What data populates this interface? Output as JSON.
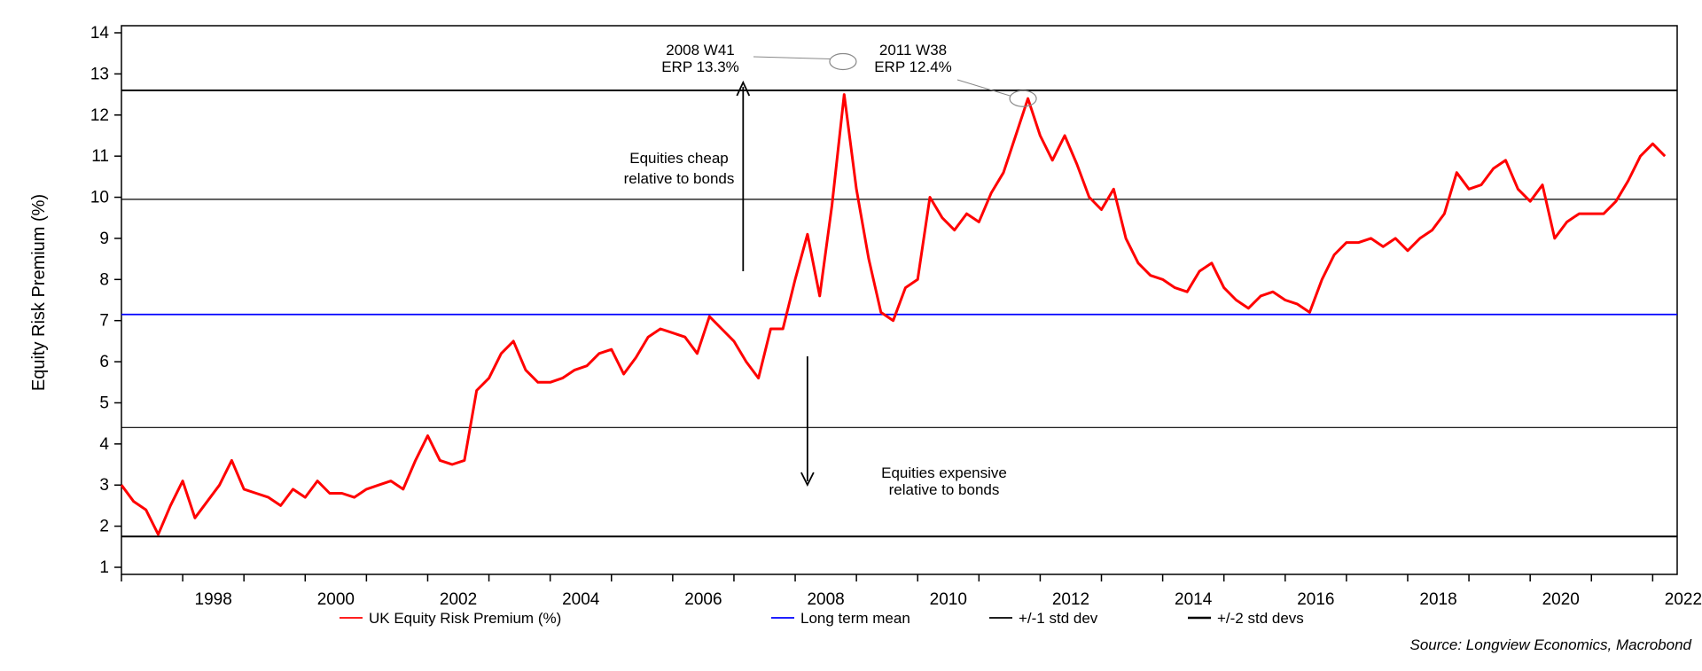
{
  "chart_data": {
    "type": "line",
    "title": "",
    "ylabel": "Equity Risk Premium (%)",
    "xlabel": "",
    "xlim": [
      1997.0,
      2022.4
    ],
    "ylim": [
      1,
      14
    ],
    "y_ticks": [
      1,
      2,
      3,
      4,
      5,
      6,
      7,
      8,
      9,
      10,
      11,
      12,
      13,
      14
    ],
    "x_ticks": [
      1998,
      2000,
      2002,
      2004,
      2006,
      2008,
      2010,
      2012,
      2014,
      2016,
      2018,
      2020,
      2022
    ],
    "grid": false,
    "legend_position": "bottom",
    "series": [
      {
        "name": "UK Equity Risk Premium (%)",
        "color": "#ff0000",
        "x": [
          1997.0,
          1997.2,
          1997.4,
          1997.6,
          1997.8,
          1998.0,
          1998.2,
          1998.4,
          1998.6,
          1998.8,
          1999.0,
          1999.2,
          1999.4,
          1999.6,
          1999.8,
          2000.0,
          2000.2,
          2000.4,
          2000.6,
          2000.8,
          2001.0,
          2001.2,
          2001.4,
          2001.6,
          2001.8,
          2002.0,
          2002.2,
          2002.4,
          2002.6,
          2002.8,
          2003.0,
          2003.2,
          2003.4,
          2003.6,
          2003.8,
          2004.0,
          2004.2,
          2004.4,
          2004.6,
          2004.8,
          2005.0,
          2005.2,
          2005.4,
          2005.6,
          2005.8,
          2006.0,
          2006.2,
          2006.4,
          2006.6,
          2006.8,
          2007.0,
          2007.2,
          2007.4,
          2007.6,
          2007.8,
          2008.0,
          2008.2,
          2008.4,
          2008.6,
          2008.8,
          2009.0,
          2009.2,
          2009.4,
          2009.6,
          2009.8,
          2010.0,
          2010.2,
          2010.4,
          2010.6,
          2010.8,
          2011.0,
          2011.2,
          2011.4,
          2011.6,
          2011.8,
          2012.0,
          2012.2,
          2012.4,
          2012.6,
          2012.8,
          2013.0,
          2013.2,
          2013.4,
          2013.6,
          2013.8,
          2014.0,
          2014.2,
          2014.4,
          2014.6,
          2014.8,
          2015.0,
          2015.2,
          2015.4,
          2015.6,
          2015.8,
          2016.0,
          2016.2,
          2016.4,
          2016.6,
          2016.8,
          2017.0,
          2017.2,
          2017.4,
          2017.6,
          2017.8,
          2018.0,
          2018.2,
          2018.4,
          2018.6,
          2018.8,
          2019.0,
          2019.2,
          2019.4,
          2019.6,
          2019.8,
          2020.0,
          2020.2,
          2020.4,
          2020.6,
          2020.8,
          2021.0,
          2021.2,
          2021.4,
          2021.6,
          2021.8,
          2022.0,
          2022.2
        ],
        "values": [
          3.0,
          2.6,
          2.4,
          1.8,
          2.5,
          3.1,
          2.2,
          2.6,
          3.0,
          3.6,
          2.9,
          2.8,
          2.7,
          2.5,
          2.9,
          2.7,
          3.1,
          2.8,
          2.8,
          2.7,
          2.9,
          3.0,
          3.1,
          2.9,
          3.6,
          4.2,
          3.6,
          3.5,
          3.6,
          5.3,
          5.6,
          6.2,
          6.5,
          5.8,
          5.5,
          5.5,
          5.6,
          5.8,
          5.9,
          6.2,
          6.3,
          5.7,
          6.1,
          6.6,
          6.8,
          6.7,
          6.6,
          6.2,
          7.1,
          6.8,
          6.5,
          6.0,
          5.6,
          6.8,
          6.8,
          8.0,
          9.1,
          7.6,
          9.8,
          12.5,
          10.2,
          8.5,
          7.2,
          7.0,
          7.8,
          8.0,
          10.0,
          9.5,
          9.2,
          9.6,
          9.4,
          10.1,
          10.6,
          11.5,
          12.4,
          11.5,
          10.9,
          11.5,
          10.8,
          10.0,
          9.7,
          10.2,
          9.0,
          8.4,
          8.1,
          8.0,
          7.8,
          7.7,
          8.2,
          8.4,
          7.8,
          7.5,
          7.3,
          7.6,
          7.7,
          7.5,
          7.4,
          7.2,
          8.0,
          8.6,
          8.9,
          8.9,
          9.0,
          8.8,
          9.0,
          8.7,
          9.0,
          9.2,
          9.6,
          10.6,
          10.2,
          10.3,
          10.7,
          10.9,
          10.2,
          9.9,
          10.3,
          9.0,
          9.4,
          9.6,
          9.6,
          9.6,
          9.9,
          10.4,
          11.0,
          11.3,
          11.0
        ]
      },
      {
        "name": "Long term mean",
        "color": "#0000ff",
        "constant": 7.15
      }
    ],
    "reference_lines": [
      {
        "name": "+/-1 std dev",
        "color": "#000000",
        "values": [
          4.4,
          9.95
        ]
      },
      {
        "name": "+/-2 std devs",
        "color": "#000000",
        "values": [
          1.75,
          12.6
        ]
      }
    ],
    "peaks": [
      {
        "label_line1": "2008 W41",
        "label_line2": "ERP 13.3%",
        "x": 2008.78,
        "y": 13.3
      },
      {
        "label_line1": "2011 W38",
        "label_line2": "ERP 12.4%",
        "x": 2011.72,
        "y": 12.4
      }
    ],
    "annotations": {
      "cheap_line1": "Equities cheap",
      "cheap_line2": "relative to bonds",
      "expensive_line1": "Equities expensive",
      "expensive_line2": "relative to bonds"
    },
    "legend": [
      {
        "label": "UK Equity Risk Premium (%)",
        "color": "#ff0000"
      },
      {
        "label": "Long term mean",
        "color": "#0000ff"
      },
      {
        "label": "+/-1 std dev",
        "color": "#000000"
      },
      {
        "label": "+/-2 std devs",
        "color": "#000000"
      }
    ],
    "source": "Source: Longview Economics, Macrobond"
  }
}
